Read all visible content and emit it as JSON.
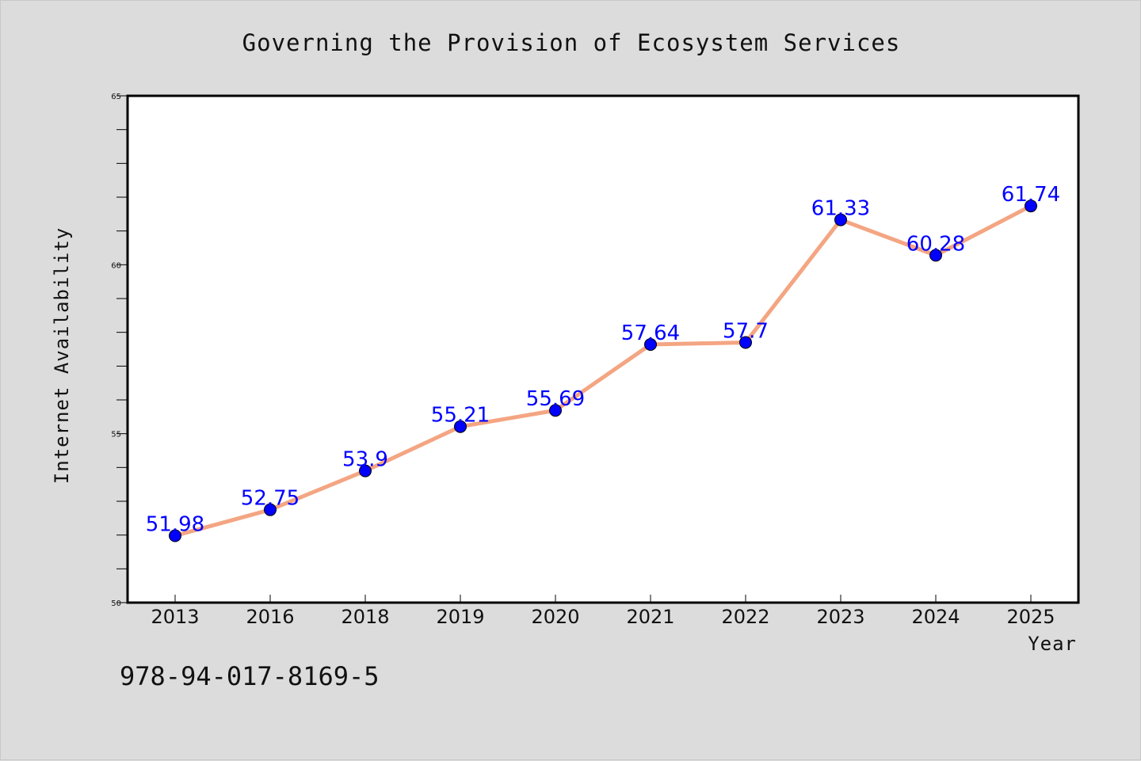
{
  "chart_data": {
    "type": "line",
    "title": "Governing the Provision of Ecosystem Services",
    "xlabel": "Year",
    "ylabel": "Internet Availability",
    "categories": [
      "2013",
      "2016",
      "2018",
      "2019",
      "2020",
      "2021",
      "2022",
      "2023",
      "2024",
      "2025"
    ],
    "series": [
      {
        "values": [
          51.98,
          52.75,
          53.9,
          55.21,
          55.69,
          57.64,
          57.7,
          61.33,
          60.28,
          61.74
        ],
        "data_labels": [
          "51.98",
          "52.75",
          "53.9",
          "55.21",
          "55.69",
          "57.64",
          "57.7",
          "61.33",
          "60.28",
          "61.74"
        ],
        "line_color": "#f4a582",
        "marker_color": "#0000ff",
        "label_color": "#0000ff"
      }
    ],
    "ylim": [
      50,
      65
    ],
    "y_ticks": [
      "50",
      "55",
      "60",
      "65"
    ],
    "grid": false,
    "legend": "none"
  },
  "footer": {
    "isbn": "978-94-017-8169-5"
  },
  "colors": {
    "background": "#dcdcdc",
    "plot_background": "#ffffff",
    "line": "#f4a582",
    "marker": "#0000ff",
    "data_label": "#0000ff"
  }
}
